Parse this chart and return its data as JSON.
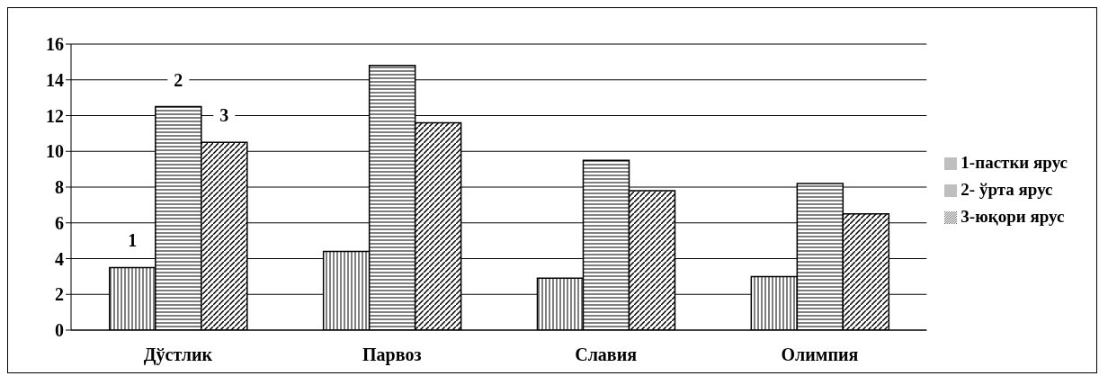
{
  "chart_data": {
    "type": "bar",
    "categories": [
      "Дўстлик",
      "Парвоз",
      "Славия",
      "Олимпия"
    ],
    "series": [
      {
        "name": "1-пастки ярус",
        "color": "#000000",
        "values": [
          3.5,
          4.4,
          2.9,
          3.0
        ]
      },
      {
        "name": "2- ўрта ярус",
        "color": "#000000",
        "values": [
          12.5,
          14.8,
          9.5,
          8.2
        ]
      },
      {
        "name": "3-юқори ярус",
        "color": "#000000",
        "values": [
          10.5,
          11.6,
          7.8,
          6.5
        ]
      }
    ],
    "annotations": [
      "1",
      "2",
      "3"
    ],
    "ylim": [
      0,
      16
    ],
    "yticks": [
      0,
      2,
      4,
      6,
      8,
      10,
      12,
      14,
      16
    ],
    "grid": "y",
    "legend": "right"
  }
}
